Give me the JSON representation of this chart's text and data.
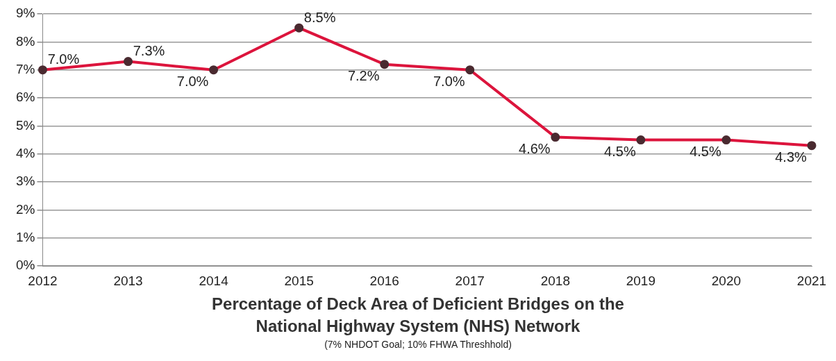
{
  "chart_data": {
    "type": "line",
    "title": "Percentage of Deck Area of Deficient Bridges on the National Highway System (NHS) Network",
    "subtitle": "(7% NHDOT Goal; 10% FHWA Threshhold)",
    "categories": [
      "2012",
      "2013",
      "2014",
      "2015",
      "2016",
      "2017",
      "2018",
      "2019",
      "2020",
      "2021"
    ],
    "series": [
      {
        "color": "#dc143c",
        "values": [
          7.0,
          7.3,
          7.0,
          8.5,
          7.2,
          7.0,
          4.6,
          4.5,
          4.5,
          4.3
        ],
        "value_labels": [
          "7.0%",
          "7.3%",
          "7.0%",
          "8.5%",
          "7.2%",
          "7.0%",
          "4.6%",
          "4.5%",
          "4.5%",
          "4.3%"
        ]
      }
    ],
    "ylim": [
      0,
      9
    ],
    "yticks": [
      {
        "value": 0,
        "label": "0%"
      },
      {
        "value": 1,
        "label": "1%"
      },
      {
        "value": 2,
        "label": "2%"
      },
      {
        "value": 3,
        "label": "3%"
      },
      {
        "value": 4,
        "label": "4%"
      },
      {
        "value": 5,
        "label": "5%"
      },
      {
        "value": 6,
        "label": "6%"
      },
      {
        "value": 7,
        "label": "7%"
      },
      {
        "value": 8,
        "label": "8%"
      },
      {
        "value": 9,
        "label": "9%"
      }
    ],
    "grid": "y",
    "legend": false,
    "marker": "circle",
    "line_style": "solid"
  }
}
